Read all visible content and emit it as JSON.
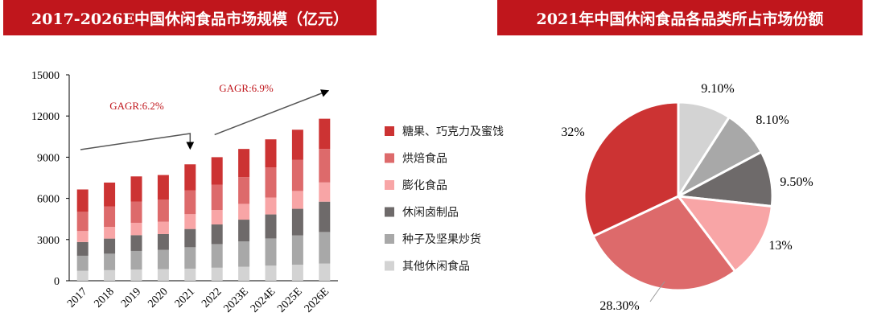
{
  "left_title": "2017-2026E中国休闲食品市场规模（亿元）",
  "right_title": "2021年中国休闲食品各品类所占市场份额",
  "chart_data": [
    {
      "type": "bar",
      "stacked": true,
      "title": "2017-2026E中国休闲食品市场规模（亿元）",
      "categories": [
        "2017",
        "2018",
        "2019",
        "2020",
        "2021",
        "2022",
        "2023E",
        "2024E",
        "2025E",
        "2026E"
      ],
      "ylim": [
        0,
        15000
      ],
      "yticks": [
        "0",
        "3000",
        "6000",
        "9000",
        "12000",
        "15000"
      ],
      "series": [
        {
          "name": "其他休闲食品",
          "color": "#D3D3D3",
          "values": [
            720,
            770,
            820,
            850,
            880,
            950,
            1020,
            1100,
            1170,
            1250
          ]
        },
        {
          "name": "种子及坚果炒货",
          "color": "#A8A8A8",
          "values": [
            1100,
            1200,
            1350,
            1400,
            1560,
            1720,
            1850,
            1980,
            2140,
            2300
          ]
        },
        {
          "name": "休闲卤制品",
          "color": "#6E6A6A",
          "values": [
            1000,
            1100,
            1150,
            1150,
            1330,
            1430,
            1580,
            1750,
            1930,
            2210
          ]
        },
        {
          "name": "膨化食品",
          "color": "#F8A5A6",
          "values": [
            800,
            850,
            900,
            900,
            1080,
            1050,
            1150,
            1230,
            1300,
            1400
          ]
        },
        {
          "name": "烘焙食品",
          "color": "#DD6A6B",
          "values": [
            1400,
            1500,
            1550,
            1600,
            1740,
            1850,
            1950,
            2190,
            2260,
            2440
          ]
        },
        {
          "name": "糖果、巧克力及蜜饯",
          "color": "#CC3333",
          "values": [
            1630,
            1730,
            1830,
            1800,
            1890,
            2000,
            2050,
            2050,
            2200,
            2200
          ]
        }
      ],
      "annotations": [
        "GAGR:6.2%",
        "GAGR:6.9%"
      ],
      "legend_position": "right"
    },
    {
      "type": "pie",
      "title": "2021年中国休闲食品各品类所占市场份额",
      "labels": [
        "9.10%",
        "8.10%",
        "9.50%",
        "13%",
        "28.30%",
        "32%"
      ],
      "values": [
        9.1,
        8.1,
        9.5,
        13,
        28.3,
        32
      ],
      "colors": [
        "#D3D3D3",
        "#A8A8A8",
        "#6E6A6A",
        "#F8A5A6",
        "#DD6A6B",
        "#CC3333"
      ]
    }
  ]
}
